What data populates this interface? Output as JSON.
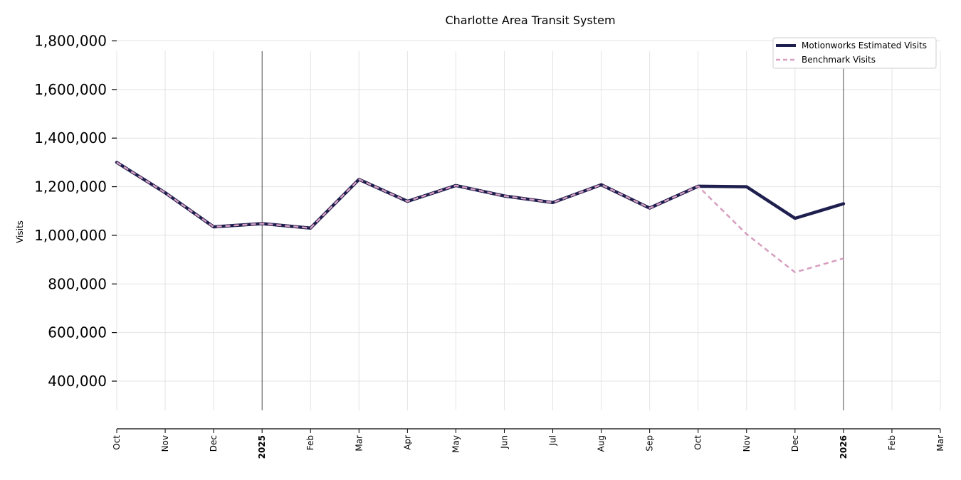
{
  "chart_data": {
    "type": "line",
    "title": "Charlotte Area Transit System",
    "xlabel": "",
    "ylabel": "Visits",
    "x": [
      "2024-10",
      "2024-11",
      "2024-12",
      "2025-01",
      "2025-02",
      "2025-03",
      "2025-04",
      "2025-05",
      "2025-06",
      "2025-07",
      "2025-08",
      "2025-09",
      "2025-10",
      "2025-11",
      "2025-12",
      "2026-01"
    ],
    "x_tick_labels": [
      "Oct",
      "Nov",
      "Dec",
      "2025",
      "Feb",
      "Mar",
      "Apr",
      "May",
      "Jun",
      "Jul",
      "Aug",
      "Sep",
      "Oct",
      "Nov",
      "Dec",
      "2026",
      "Feb",
      "Mar"
    ],
    "year_ticks": [
      "2025",
      "2026"
    ],
    "xlim": [
      "2024-10",
      "2026-03"
    ],
    "ylim": [
      280000,
      1800000
    ],
    "y_ticks": [
      400000,
      600000,
      800000,
      1000000,
      1200000,
      1400000,
      1600000,
      1800000
    ],
    "y_tick_labels": [
      "400,000",
      "600,000",
      "800,000",
      "1,000,000",
      "1,200,000",
      "1,400,000",
      "1,600,000",
      "1,800,000"
    ],
    "grid": true,
    "legend_position": "top-right",
    "series": [
      {
        "name": "Motionworks Estimated Visits",
        "color": "#1f1f4f",
        "style": "solid",
        "values": [
          1300000,
          1175000,
          1035000,
          1048000,
          1030000,
          1230000,
          1140000,
          1205000,
          1162000,
          1135000,
          1208000,
          1112000,
          1202000,
          1200000,
          1070000,
          1130000
        ]
      },
      {
        "name": "Benchmark Visits",
        "color": "#d69ec0",
        "style": "dashed",
        "values": [
          1300000,
          1175000,
          1035000,
          1048000,
          1030000,
          1230000,
          1140000,
          1205000,
          1162000,
          1135000,
          1208000,
          1112000,
          1202000,
          1005000,
          848000,
          905000
        ]
      }
    ]
  }
}
